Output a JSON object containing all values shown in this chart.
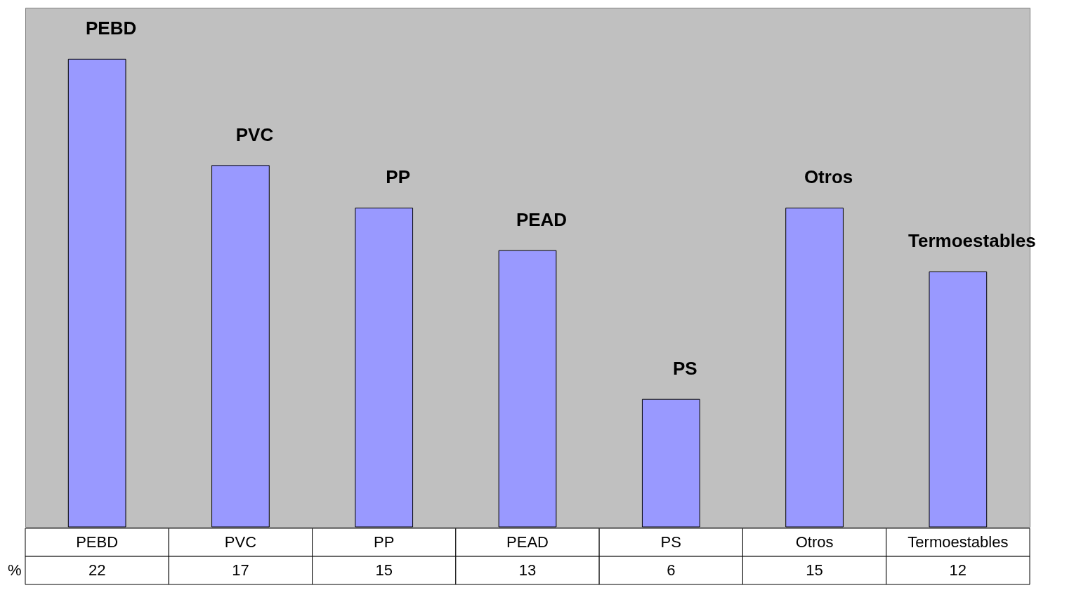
{
  "chart_data": {
    "type": "bar",
    "ylabel": "%",
    "categories": [
      "PEBD",
      "PVC",
      "PP",
      "PEAD",
      "PS",
      "Otros",
      "Termoestables"
    ],
    "values": [
      22,
      17,
      15,
      13,
      6,
      15,
      12
    ],
    "color": "#9999ff",
    "data_labels": true
  }
}
